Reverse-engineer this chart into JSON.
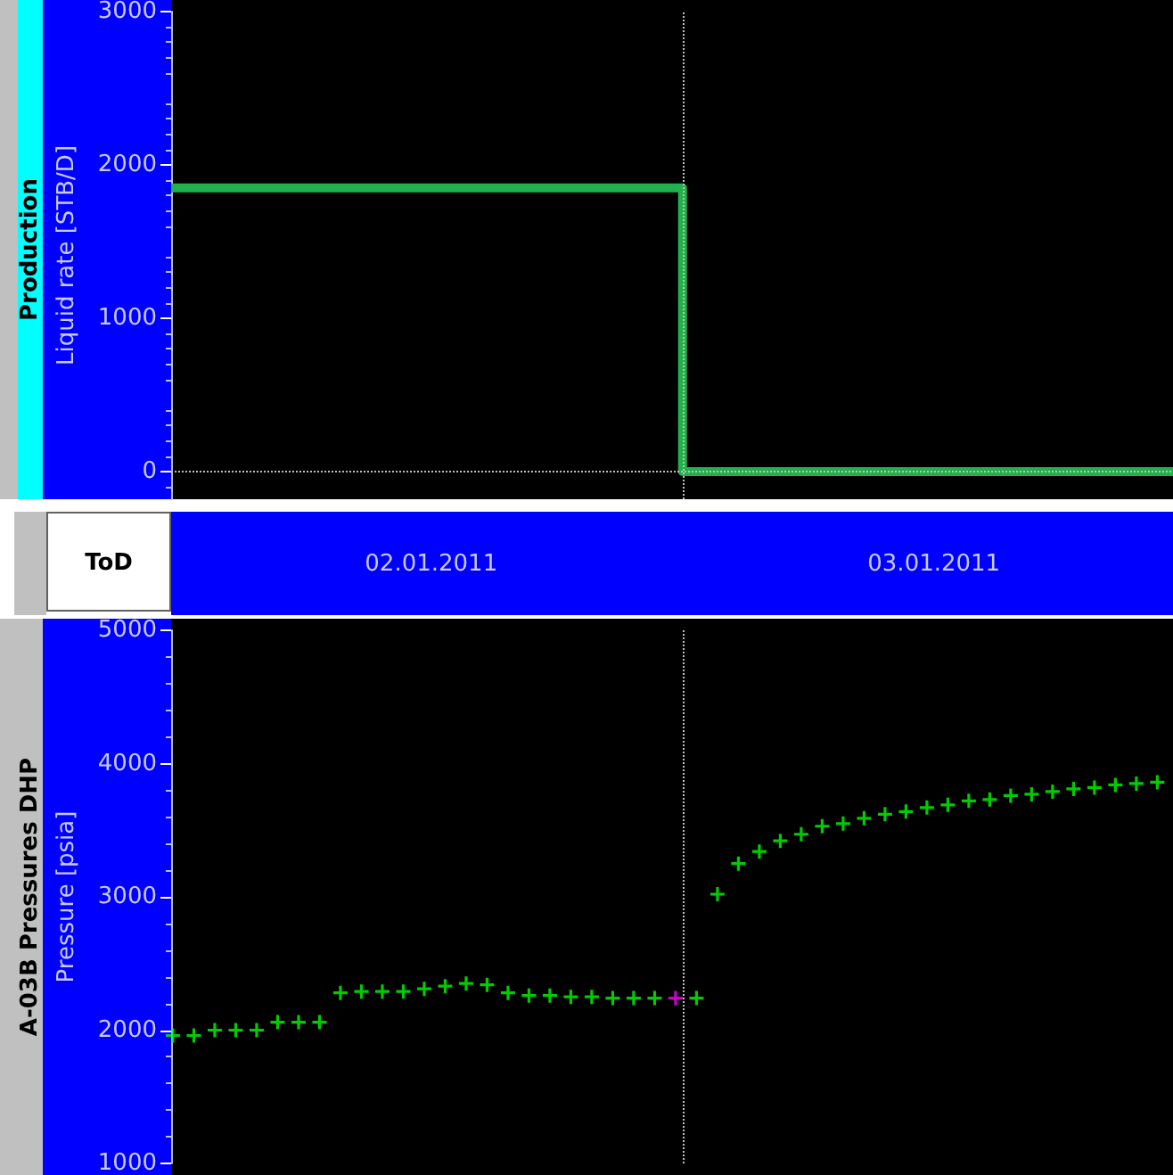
{
  "chart_data": [
    {
      "type": "step",
      "title": "Production",
      "ylabel": "Liquid rate [STB/D]",
      "xlabel": "ToD",
      "x": [
        "2011-01-01T11:35",
        "2011-01-02T12:00",
        "2011-01-03T11:25"
      ],
      "series": [
        {
          "color": "#22b14c",
          "values": [
            1850,
            0,
            0
          ]
        }
      ],
      "xlim": [
        "2011-01-01T11:35",
        "2011-01-03T11:25"
      ],
      "xticks": [
        {
          "value": "2011-01-02",
          "label": "02.01.2011"
        },
        {
          "value": "2011-01-03",
          "label": "03.01.2011"
        }
      ],
      "ylim": [
        -180,
        3000
      ],
      "yticks": [
        0,
        1000,
        2000,
        3000
      ],
      "grid": false,
      "marker": "none",
      "ref_lines": [
        {
          "axis": "x",
          "value": "2011-01-02T12:00",
          "color": "#c0c0c0",
          "line_style": "dotted"
        },
        {
          "axis": "y",
          "value": 0,
          "color": "#c0c0c0",
          "line_style": "dotted"
        }
      ]
    },
    {
      "type": "scatter",
      "title": "A-03B Pressures DHP",
      "ylabel": "Pressure [psia]",
      "x": [
        "2011-01-01T11:40",
        "2011-01-01T12:40",
        "2011-01-01T13:40",
        "2011-01-01T14:40",
        "2011-01-01T15:40",
        "2011-01-01T16:40",
        "2011-01-01T17:40",
        "2011-01-01T18:40",
        "2011-01-01T19:40",
        "2011-01-01T20:40",
        "2011-01-01T21:40",
        "2011-01-01T22:40",
        "2011-01-01T23:40",
        "2011-01-02T00:40",
        "2011-01-02T01:40",
        "2011-01-02T02:40",
        "2011-01-02T03:40",
        "2011-01-02T04:40",
        "2011-01-02T05:40",
        "2011-01-02T06:40",
        "2011-01-02T07:40",
        "2011-01-02T08:40",
        "2011-01-02T09:40",
        "2011-01-02T10:40",
        "2011-01-02T11:40",
        "2011-01-02T12:40",
        "2011-01-02T13:40",
        "2011-01-02T14:40",
        "2011-01-02T15:40",
        "2011-01-02T16:40",
        "2011-01-02T17:40",
        "2011-01-02T18:40",
        "2011-01-02T19:40",
        "2011-01-02T20:40",
        "2011-01-02T21:40",
        "2011-01-02T22:40",
        "2011-01-02T23:40",
        "2011-01-03T00:40",
        "2011-01-03T01:40",
        "2011-01-03T02:40",
        "2011-01-03T03:40",
        "2011-01-03T04:40",
        "2011-01-03T05:40",
        "2011-01-03T06:40",
        "2011-01-03T07:40",
        "2011-01-03T08:40",
        "2011-01-03T09:40",
        "2011-01-03T10:40"
      ],
      "series": [
        {
          "color": "#00ff00",
          "values": [
            1960,
            1960,
            2000,
            2000,
            2000,
            2060,
            2060,
            2060,
            2280,
            2290,
            2290,
            2290,
            2310,
            2330,
            2350,
            2340,
            2280,
            2260,
            2260,
            2250,
            2250,
            2240,
            2240,
            2240,
            2240,
            2240,
            3020,
            3250,
            3340,
            3420,
            3470,
            3530,
            3550,
            3590,
            3620,
            3640,
            3670,
            3690,
            3720,
            3730,
            3760,
            3770,
            3790,
            3810,
            3820,
            3840,
            3850,
            3860
          ],
          "colors": [
            "#00ff00",
            "#00ff00",
            "#00ff00",
            "#00ff00",
            "#00ff00",
            "#00ff00",
            "#00ff00",
            "#00ff00",
            "#00ff00",
            "#00ff00",
            "#00ff00",
            "#00ff00",
            "#00ff00",
            "#00ff00",
            "#00ff00",
            "#00ff00",
            "#00ff00",
            "#00ff00",
            "#00ff00",
            "#00ff00",
            "#00ff00",
            "#00ff00",
            "#00ff00",
            "#00ff00",
            "#ff00ff",
            "#00ff00",
            "#00ff00",
            "#00ff00",
            "#00ff00",
            "#00ff00",
            "#00ff00",
            "#00ff00",
            "#00ff00",
            "#00ff00",
            "#00ff00",
            "#00ff00",
            "#00ff00",
            "#00ff00",
            "#00ff00",
            "#00ff00",
            "#00ff00",
            "#00ff00",
            "#00ff00",
            "#00ff00",
            "#00ff00",
            "#00ff00",
            "#00ff00",
            "#00ff00"
          ]
        }
      ],
      "xlim": [
        "2011-01-01T11:35",
        "2011-01-03T11:25"
      ],
      "ylim": [
        1000,
        5000
      ],
      "yticks": [
        1000,
        2000,
        3000,
        4000,
        5000
      ],
      "grid": false,
      "marker": "cross",
      "tick_labels": "y",
      "ref_lines": [
        {
          "axis": "x",
          "value": "2011-01-02T12:00",
          "color": "#c0c0c0",
          "line_style": "dotted"
        }
      ]
    }
  ]
}
